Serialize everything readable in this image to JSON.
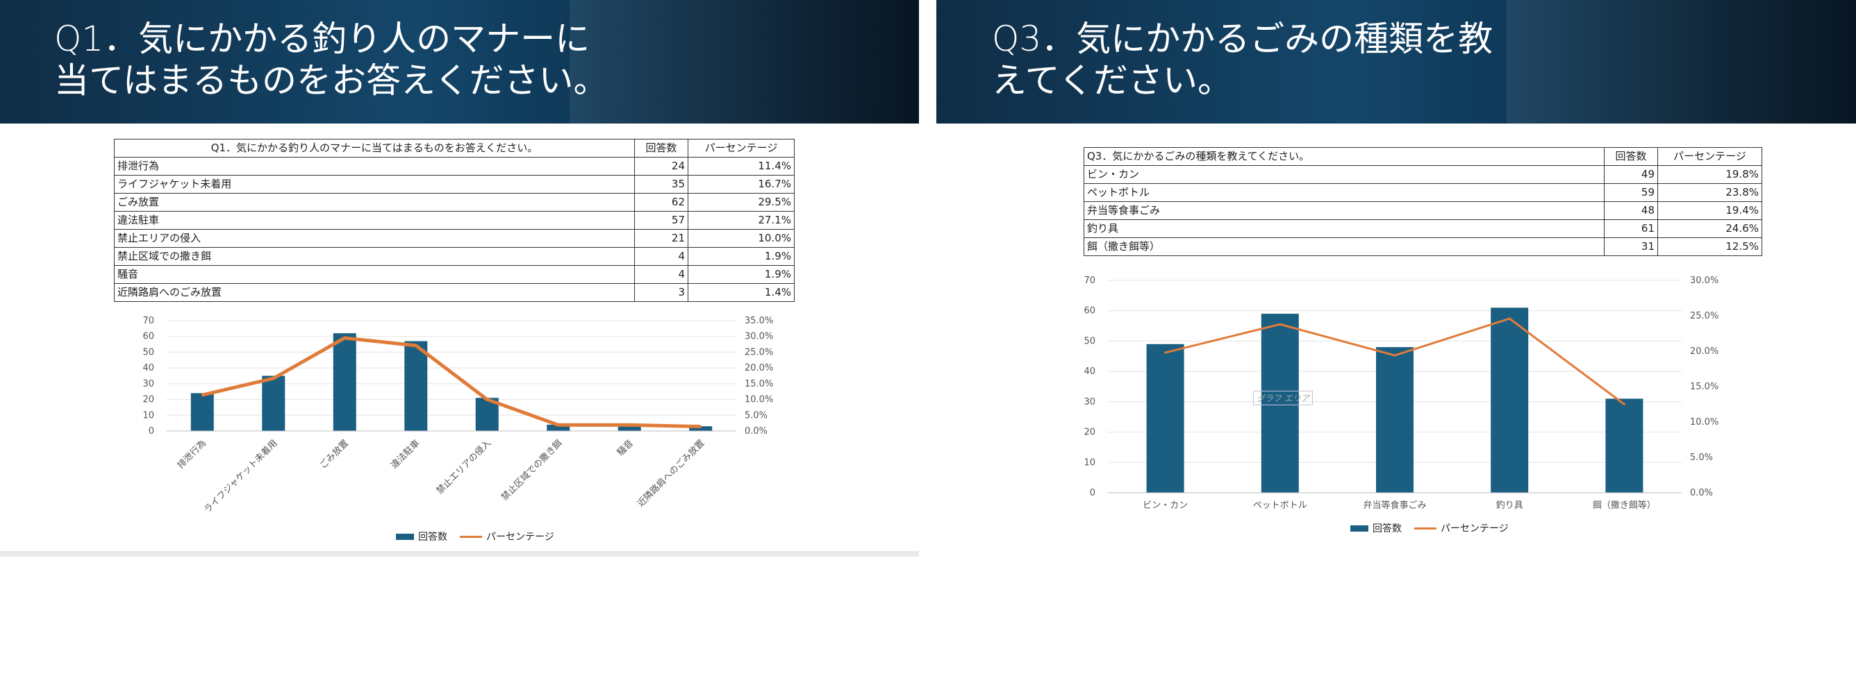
{
  "left_slide": {
    "title": "Q1．気にかかる釣り人のマナーに\n当てはまるものをお答えください。",
    "table": {
      "headers": [
        "Q1．気にかかる釣り人のマナーに当てはまるものをお答えください。",
        "回答数",
        "パーセンテージ"
      ],
      "rows": [
        [
          "排泄行為",
          "24",
          "11.4%"
        ],
        [
          "ライフジャケット未着用",
          "35",
          "16.7%"
        ],
        [
          "ごみ放置",
          "62",
          "29.5%"
        ],
        [
          "違法駐車",
          "57",
          "27.1%"
        ],
        [
          "禁止エリアの侵入",
          "21",
          "10.0%"
        ],
        [
          "禁止区域での撒き餌",
          "4",
          "1.9%"
        ],
        [
          "騒音",
          "4",
          "1.9%"
        ],
        [
          "近隣路肩へのごみ放置",
          "3",
          "1.4%"
        ]
      ]
    }
  },
  "right_slide": {
    "title": "Q3．気にかかるごみの種類を教\nえてください。",
    "table": {
      "headers": [
        "Q3．気にかかるごみの種類を教えてください。",
        "回答数",
        "パーセンテージ"
      ],
      "rows": [
        [
          "ビン・カン",
          "49",
          "19.8%"
        ],
        [
          "ペットボトル",
          "59",
          "23.8%"
        ],
        [
          "弁当等食事ごみ",
          "48",
          "19.4%"
        ],
        [
          "釣り具",
          "61",
          "24.6%"
        ],
        [
          "餌（撒き餌等）",
          "31",
          "12.5%"
        ]
      ]
    },
    "watermark": "グラフ エリア"
  },
  "colors": {
    "bar": "#1a5f82",
    "line": "#e07b39",
    "grid": "#e3e3e3",
    "axis_text": "#555555"
  },
  "chart_data": [
    {
      "type": "bar",
      "categories": [
        "排泄行為",
        "ライフジャケット未着用",
        "ごみ放置",
        "違法駐車",
        "禁止エリアの侵入",
        "禁止区域での撒き餌",
        "騒音",
        "近隣路肩へのごみ放置"
      ],
      "series": [
        {
          "name": "回答数",
          "type": "bar",
          "axis": "left",
          "values": [
            24,
            35,
            62,
            57,
            21,
            4,
            4,
            3
          ]
        },
        {
          "name": "パーセンテージ",
          "type": "line",
          "axis": "right",
          "values": [
            11.4,
            16.7,
            29.5,
            27.1,
            10.0,
            1.9,
            1.9,
            1.4
          ]
        }
      ],
      "ylim": [
        0,
        70
      ],
      "yticks": [
        "0",
        "10",
        "20",
        "30",
        "40",
        "50",
        "60",
        "70"
      ],
      "y2lim": [
        0,
        35
      ],
      "y2ticks": [
        "0.0%",
        "5.0%",
        "10.0%",
        "15.0%",
        "20.0%",
        "25.0%",
        "30.0%",
        "35.0%"
      ],
      "legend_position": "bottom",
      "xlabel_rotation": "diagonal",
      "grid": true
    },
    {
      "type": "bar",
      "categories": [
        "ビン・カン",
        "ペットボトル",
        "弁当等食事ごみ",
        "釣り具",
        "餌（撒き餌等）"
      ],
      "series": [
        {
          "name": "回答数",
          "type": "bar",
          "axis": "left",
          "values": [
            49,
            59,
            48,
            61,
            31
          ]
        },
        {
          "name": "パーセンテージ",
          "type": "line",
          "axis": "right",
          "values": [
            19.8,
            23.8,
            19.4,
            24.6,
            12.5
          ]
        }
      ],
      "ylim": [
        0,
        70
      ],
      "yticks": [
        "0",
        "10",
        "20",
        "30",
        "40",
        "50",
        "60",
        "70"
      ],
      "y2lim": [
        0,
        30
      ],
      "y2ticks": [
        "0.0%",
        "5.0%",
        "10.0%",
        "15.0%",
        "20.0%",
        "25.0%",
        "30.0%"
      ],
      "legend_position": "bottom",
      "grid": true
    }
  ]
}
